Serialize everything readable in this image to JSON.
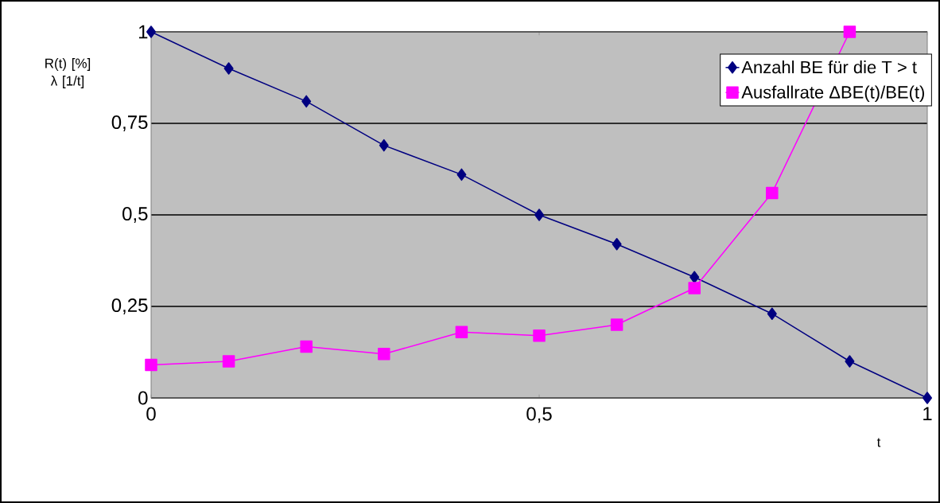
{
  "chart_data": {
    "type": "line",
    "ylabel": "R(t) [%] λ [1/t]",
    "xlabel": "t",
    "x": [
      0,
      0.1,
      0.2,
      0.3,
      0.4,
      0.5,
      0.6,
      0.7,
      0.8,
      0.9,
      1
    ],
    "series": [
      {
        "name": "Anzahl BE für die T > t",
        "color": "#000080",
        "marker": "diamond",
        "values": [
          1,
          0.9,
          0.81,
          0.69,
          0.61,
          0.5,
          0.42,
          0.33,
          0.23,
          0.1,
          0
        ]
      },
      {
        "name": "Ausfallrate ΔBE(t)/BE(t)",
        "color": "#ff00ff",
        "marker": "square",
        "values": [
          0.09,
          0.1,
          0.14,
          0.12,
          0.18,
          0.17,
          0.2,
          0.3,
          0.56,
          1,
          null
        ]
      }
    ],
    "xlim": [
      0,
      1
    ],
    "ylim": [
      0,
      1
    ],
    "xticks": [
      0,
      {
        "value": 0.5,
        "label": "0,5"
      },
      1
    ],
    "yticks": [
      0,
      {
        "value": 0.25,
        "label": "0,25"
      },
      {
        "value": 0.5,
        "label": "0,5"
      },
      {
        "value": 0.75,
        "label": "0,75"
      },
      1
    ],
    "grid": "y",
    "legend": "top right",
    "line_style": "solid"
  }
}
